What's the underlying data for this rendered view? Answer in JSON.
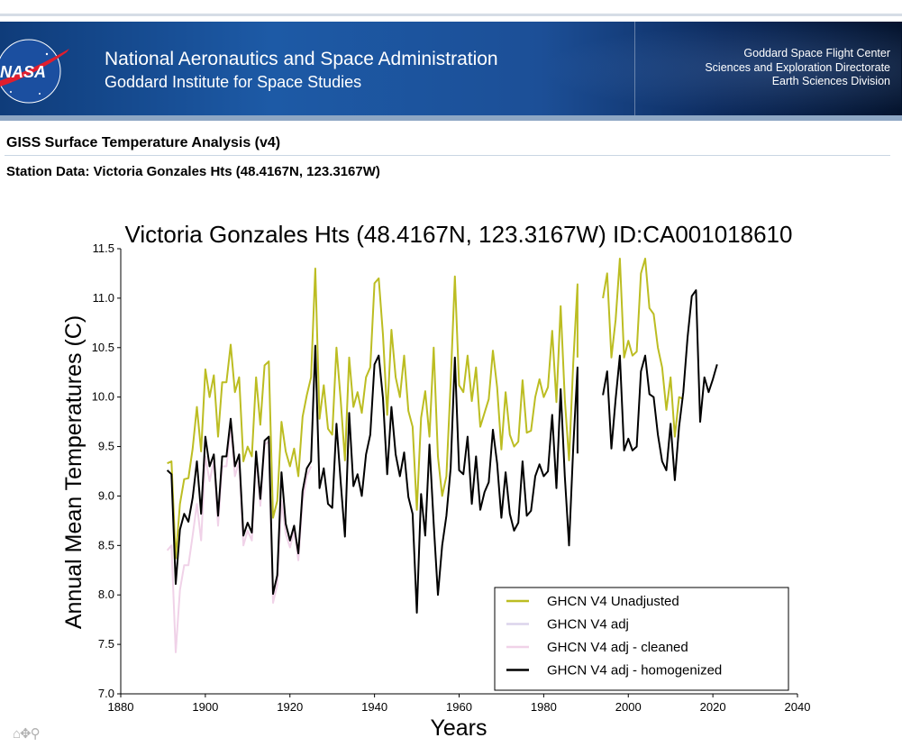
{
  "header": {
    "agency_line1": "National Aeronautics and Space Administration",
    "agency_line2": "Goddard Institute for Space Studies",
    "right_line1": "Goddard Space Flight Center",
    "right_line2": "Sciences and Exploration Directorate",
    "right_line3": "Earth Sciences Division",
    "logo_text": "NASA"
  },
  "page": {
    "title": "GISS Surface Temperature Analysis (v4)",
    "station": "Station Data: Victoria Gonzales Hts (48.4167N, 123.3167W)"
  },
  "toolbar": {
    "icons": "⌂✥⚲"
  },
  "chart_data": {
    "type": "line",
    "title": "Victoria Gonzales Hts (48.4167N, 123.3167W) ID:CA001018610",
    "xlabel": "Years",
    "ylabel": "Annual Mean Temperatures (C)",
    "xlim": [
      1880,
      2040
    ],
    "ylim": [
      7.0,
      11.5
    ],
    "xticks": [
      1880,
      1900,
      1920,
      1940,
      1960,
      1980,
      2000,
      2020,
      2040
    ],
    "yticks": [
      "7.0",
      "7.5",
      "8.0",
      "8.5",
      "9.0",
      "9.5",
      "10.0",
      "10.5",
      "11.0",
      "11.5"
    ],
    "legend_position": "lower-right",
    "series": [
      {
        "name": "GHCN V4 Unadjusted",
        "color": "#bcbd22",
        "width": 2,
        "x": [
          1891,
          1892,
          1893,
          1894,
          1895,
          1896,
          1897,
          1898,
          1899,
          1900,
          1901,
          1902,
          1903,
          1904,
          1905,
          1906,
          1907,
          1908,
          1909,
          1910,
          1911,
          1912,
          1913,
          1914,
          1915,
          1916,
          1917,
          1918,
          1919,
          1920,
          1921,
          1922,
          1923,
          1924,
          1925,
          1926,
          1927,
          1928,
          1929,
          1930,
          1931,
          1932,
          1933,
          1934,
          1935,
          1936,
          1937,
          1938,
          1939,
          1940,
          1941,
          1942,
          1943,
          1944,
          1945,
          1946,
          1947,
          1948,
          1949,
          1950,
          1951,
          1952,
          1953,
          1954,
          1955,
          1956,
          1957,
          1958,
          1959,
          1960,
          1961,
          1962,
          1963,
          1964,
          1965,
          1966,
          1967,
          1968,
          1969,
          1970,
          1971,
          1972,
          1973,
          1974,
          1975,
          1976,
          1977,
          1978,
          1979,
          1980,
          1981,
          1982,
          1983,
          1984,
          1985,
          1986,
          1987,
          1988,
          null,
          1994,
          1995,
          1996,
          1997,
          1998,
          1999,
          2000,
          2001,
          2002,
          2003,
          2004,
          2005,
          2006,
          2007,
          2008,
          2009,
          2010,
          2011,
          2012,
          2013
        ],
        "y": [
          9.33,
          9.35,
          8.37,
          8.92,
          9.17,
          9.18,
          9.48,
          9.9,
          9.45,
          10.28,
          10.0,
          10.22,
          9.6,
          10.15,
          10.15,
          10.53,
          10.05,
          10.2,
          9.35,
          9.5,
          9.4,
          10.2,
          9.72,
          10.32,
          10.36,
          8.78,
          8.95,
          9.75,
          9.45,
          9.3,
          9.48,
          9.2,
          9.8,
          10.02,
          10.2,
          11.3,
          9.78,
          10.12,
          9.68,
          9.62,
          10.5,
          9.97,
          9.36,
          10.4,
          9.9,
          10.05,
          9.84,
          10.2,
          10.3,
          11.15,
          11.2,
          10.63,
          9.82,
          10.68,
          10.2,
          10.0,
          10.42,
          9.86,
          9.7,
          8.86,
          9.79,
          10.06,
          9.6,
          10.5,
          9.4,
          9.0,
          9.2,
          10.14,
          11.22,
          10.12,
          10.05,
          10.42,
          9.96,
          10.3,
          9.7,
          9.84,
          9.98,
          10.47,
          10.1,
          9.47,
          10.05,
          9.62,
          9.5,
          9.55,
          10.17,
          9.64,
          9.66,
          10.0,
          10.18,
          10.0,
          10.1,
          10.67,
          9.95,
          10.92,
          9.98,
          9.36,
          10.35,
          11.14,
          null,
          11.0,
          11.25,
          10.4,
          10.78,
          11.4,
          10.4,
          10.57,
          10.42,
          10.46,
          11.25,
          11.4,
          10.9,
          10.84,
          10.5,
          10.3,
          9.87,
          10.2,
          9.6,
          10.0,
          9.98
        ],
        "y_end": [
          10.4
        ]
      },
      {
        "name": "GHCN V4 adj",
        "color": "#dcd4ec",
        "width": 2,
        "x": [],
        "y": []
      },
      {
        "name": "GHCN V4 adj - cleaned",
        "color": "#f0d2e8",
        "width": 2,
        "x": [
          1891,
          1892,
          1893,
          1894,
          1895,
          1896,
          1897,
          1898,
          1899,
          1900,
          1901,
          1902,
          1903,
          1904,
          1905,
          1906,
          1907,
          1908,
          1909,
          1910,
          1911,
          1912,
          1913,
          1914,
          1915,
          1916,
          1917,
          1918,
          1919,
          1920,
          1921,
          1922,
          1923,
          1924,
          1925
        ],
        "y": [
          8.45,
          8.5,
          7.42,
          8.05,
          8.3,
          8.3,
          8.6,
          8.92,
          8.55,
          9.4,
          9.15,
          9.35,
          8.7,
          9.3,
          9.3,
          9.7,
          9.2,
          9.35,
          8.5,
          8.65,
          8.55,
          9.4,
          8.9,
          9.52,
          9.55,
          7.92,
          8.1,
          8.95,
          8.62,
          8.48,
          8.65,
          8.35,
          8.95,
          9.2,
          9.3
        ]
      },
      {
        "name": "GHCN V4 adj - homogenized",
        "color": "#000000",
        "width": 2,
        "x": [
          1891,
          1892,
          1893,
          1894,
          1895,
          1896,
          1897,
          1898,
          1899,
          1900,
          1901,
          1902,
          1903,
          1904,
          1905,
          1906,
          1907,
          1908,
          1909,
          1910,
          1911,
          1912,
          1913,
          1914,
          1915,
          1916,
          1917,
          1918,
          1919,
          1920,
          1921,
          1922,
          1923,
          1924,
          1925,
          1926,
          1927,
          1928,
          1929,
          1930,
          1931,
          1932,
          1933,
          1934,
          1935,
          1936,
          1937,
          1938,
          1939,
          1940,
          1941,
          1942,
          1943,
          1944,
          1945,
          1946,
          1947,
          1948,
          1949,
          1950,
          1951,
          1952,
          1953,
          1954,
          1955,
          1956,
          1957,
          1958,
          1959,
          1960,
          1961,
          1962,
          1963,
          1964,
          1965,
          1966,
          1967,
          1968,
          1969,
          1970,
          1971,
          1972,
          1973,
          1974,
          1975,
          1976,
          1977,
          1978,
          1979,
          1980,
          1981,
          1982,
          1983,
          1984,
          1985,
          1986,
          1987,
          1988,
          null,
          1994,
          1995,
          1996,
          1997,
          1998,
          1999,
          2000,
          2001,
          2002,
          2003,
          2004,
          2005,
          2006,
          2007,
          2008,
          2009,
          2010,
          2011,
          2012,
          2013,
          2014,
          2015,
          2016,
          2017,
          2018,
          2019,
          2020,
          2021
        ],
        "y": [
          9.26,
          9.22,
          8.11,
          8.66,
          8.82,
          8.74,
          8.98,
          9.35,
          8.82,
          9.6,
          9.3,
          9.42,
          8.8,
          9.4,
          9.4,
          9.78,
          9.3,
          9.42,
          8.6,
          8.73,
          8.63,
          9.45,
          8.97,
          9.56,
          9.6,
          8.01,
          8.2,
          9.24,
          8.72,
          8.55,
          8.7,
          8.42,
          9.05,
          9.28,
          9.35,
          10.52,
          9.08,
          9.28,
          8.92,
          8.88,
          9.73,
          9.14,
          8.59,
          9.84,
          9.1,
          9.22,
          9.0,
          9.42,
          9.62,
          10.33,
          10.42,
          9.99,
          9.22,
          9.9,
          9.42,
          9.2,
          9.44,
          8.99,
          8.82,
          7.82,
          9.02,
          8.6,
          9.52,
          8.72,
          8.0,
          8.5,
          8.8,
          9.28,
          10.4,
          9.26,
          9.22,
          9.6,
          8.92,
          9.4,
          8.86,
          9.04,
          9.14,
          9.67,
          9.33,
          8.78,
          9.24,
          8.82,
          8.65,
          8.73,
          9.35,
          8.8,
          8.85,
          9.2,
          9.32,
          9.2,
          9.25,
          9.82,
          9.08,
          10.08,
          9.2,
          8.5,
          9.5,
          10.3,
          null,
          10.02,
          10.26,
          9.48,
          9.98,
          10.42,
          9.46,
          9.58,
          9.46,
          9.5,
          10.26,
          10.42,
          10.03,
          10.0,
          9.62,
          9.35,
          9.26,
          9.73,
          9.16,
          9.7,
          10.05,
          10.6,
          11.02,
          11.08,
          9.75,
          10.2,
          10.05,
          10.18,
          10.33
        ],
        "y_end": [
          9.43
        ]
      }
    ]
  }
}
